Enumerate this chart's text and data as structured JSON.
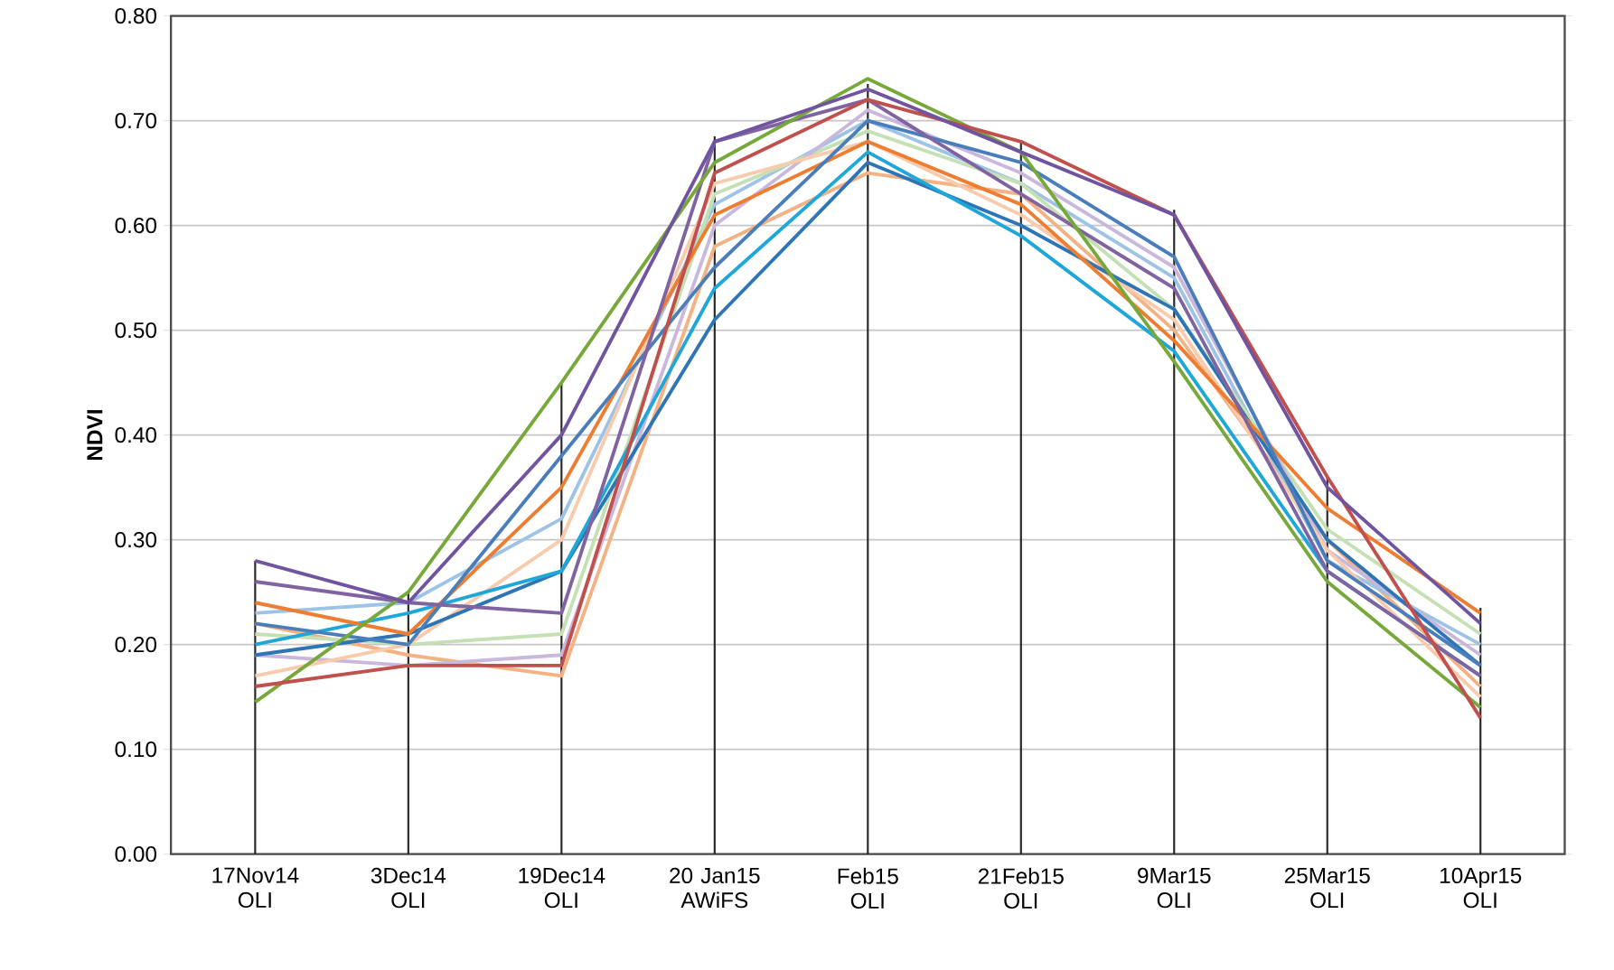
{
  "chart_data": {
    "type": "line",
    "ylabel": "NDVI",
    "categories": [
      "17Nov14 OLI",
      "3Dec14 OLI",
      "19Dec14 OLI",
      "20 Jan15 AWiFS",
      "Feb15 OLI",
      "21Feb15 OLI",
      "9Mar15 OLI",
      "25Mar15 OLI",
      "10Apr15 OLI"
    ],
    "ylim": [
      0,
      0.8
    ],
    "yticks": [
      {
        "value": 0,
        "label": "0.00"
      },
      {
        "value": 0.1,
        "label": "0.10"
      },
      {
        "value": 0.2,
        "label": "0.20"
      },
      {
        "value": 0.3,
        "label": "0.30"
      },
      {
        "value": 0.4,
        "label": "0.40"
      },
      {
        "value": 0.5,
        "label": "0.50"
      },
      {
        "value": 0.6,
        "label": "0.60"
      },
      {
        "value": 0.7,
        "label": "0.70"
      },
      {
        "value": 0.8,
        "label": "0.80"
      }
    ],
    "grid": "y",
    "marker": "none",
    "line_style": "solid",
    "series": [
      {
        "type": "bar",
        "color": "#262626",
        "values": [
          0.28,
          0.25,
          0.45,
          0.685,
          0.735,
          0.68,
          0.615,
          0.36,
          0.235
        ]
      },
      {
        "color": "#f4b183",
        "values": [
          0.22,
          0.19,
          0.17,
          0.58,
          0.65,
          0.63,
          0.5,
          0.3,
          0.16
        ]
      },
      {
        "color": "#9dc3e6",
        "values": [
          0.23,
          0.24,
          0.32,
          0.62,
          0.7,
          0.64,
          0.55,
          0.28,
          0.2
        ]
      },
      {
        "color": "#c5e0b4",
        "values": [
          0.21,
          0.2,
          0.21,
          0.63,
          0.69,
          0.64,
          0.52,
          0.31,
          0.21
        ]
      },
      {
        "color": "#c9b8dc",
        "values": [
          0.19,
          0.18,
          0.19,
          0.6,
          0.71,
          0.65,
          0.56,
          0.29,
          0.19
        ]
      },
      {
        "color": "#f8cbad",
        "values": [
          0.17,
          0.2,
          0.3,
          0.64,
          0.68,
          0.61,
          0.51,
          0.29,
          0.15
        ]
      },
      {
        "color": "#2e75b6",
        "values": [
          0.19,
          0.21,
          0.27,
          0.51,
          0.66,
          0.6,
          0.52,
          0.3,
          0.18
        ]
      },
      {
        "color": "#1fa7d9",
        "values": [
          0.2,
          0.23,
          0.27,
          0.54,
          0.67,
          0.59,
          0.48,
          0.27,
          0.17
        ]
      },
      {
        "color": "#ed7d31",
        "values": [
          0.24,
          0.21,
          0.35,
          0.61,
          0.68,
          0.62,
          0.49,
          0.33,
          0.23
        ]
      },
      {
        "color": "#4a7ebb",
        "values": [
          0.22,
          0.2,
          0.38,
          0.56,
          0.7,
          0.66,
          0.57,
          0.28,
          0.18
        ]
      },
      {
        "color": "#8064a2",
        "values": [
          0.26,
          0.24,
          0.23,
          0.68,
          0.72,
          0.63,
          0.54,
          0.27,
          0.17
        ]
      },
      {
        "color": "#77a83a",
        "values": [
          0.145,
          0.25,
          0.45,
          0.66,
          0.74,
          0.67,
          0.47,
          0.26,
          0.14
        ]
      },
      {
        "color": "#c0504d",
        "values": [
          0.16,
          0.18,
          0.18,
          0.65,
          0.72,
          0.68,
          0.61,
          0.36,
          0.13
        ]
      },
      {
        "color": "#7054a0",
        "values": [
          0.28,
          0.24,
          0.4,
          0.68,
          0.73,
          0.67,
          0.61,
          0.35,
          0.22
        ]
      }
    ]
  }
}
